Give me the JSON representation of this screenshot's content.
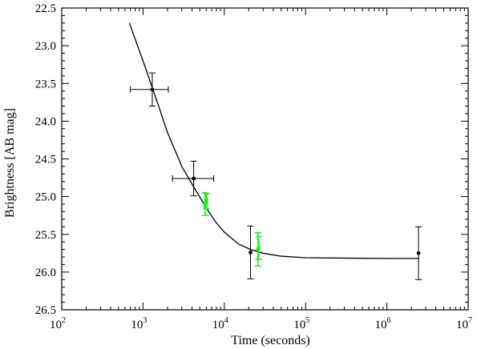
{
  "chart_data": {
    "type": "scatter",
    "title": "",
    "xlabel": "Time (seconds)",
    "ylabel": "Brightness [AB mag]",
    "x_scale": "log",
    "xlim": [
      100,
      10000000
    ],
    "ylim": [
      26.5,
      22.5
    ],
    "y_inverted": true,
    "grid": false,
    "x_ticks": [
      {
        "base": "10",
        "exp": "2",
        "value": 100
      },
      {
        "base": "10",
        "exp": "3",
        "value": 1000
      },
      {
        "base": "10",
        "exp": "4",
        "value": 10000
      },
      {
        "base": "10",
        "exp": "5",
        "value": 100000
      },
      {
        "base": "10",
        "exp": "6",
        "value": 1000000
      },
      {
        "base": "10",
        "exp": "7",
        "value": 10000000
      }
    ],
    "y_ticks": [
      "22.5",
      "23.0",
      "23.5",
      "24.0",
      "24.5",
      "25.0",
      "25.5",
      "26.0",
      "26.5"
    ],
    "series": [
      {
        "color": "#000000",
        "marker": "circle",
        "points": [
          {
            "x": 1300,
            "y": 23.58,
            "xlo": 700,
            "xhi": 2050,
            "yerr": 0.22
          },
          {
            "x": 4200,
            "y": 24.76,
            "xlo": 2300,
            "xhi": 7400,
            "yerr": 0.23
          },
          {
            "x": 21000,
            "y": 25.74,
            "xlo": 21000,
            "xhi": 21000,
            "yerr": 0.35
          },
          {
            "x": 2450000,
            "y": 25.75,
            "xlo": 2450000,
            "xhi": 2450000,
            "yerr": 0.35
          }
        ]
      },
      {
        "color": "#22ee22",
        "marker": "circle",
        "points": [
          {
            "x": 5800,
            "y": 25.1,
            "xlo": 5600,
            "xhi": 6100,
            "yerr": 0.15
          },
          {
            "x": 6000,
            "y": 25.06,
            "xlo": 5800,
            "xhi": 6200,
            "yerr": 0.1
          },
          {
            "x": 26000,
            "y": 25.7,
            "xlo": 26000,
            "xhi": 26000,
            "yerr": 0.22
          },
          {
            "x": 26500,
            "y": 25.68,
            "xlo": 26500,
            "xhi": 26500,
            "yerr": 0.15
          }
        ]
      }
    ],
    "fit_curve": {
      "color": "#000000",
      "points": [
        {
          "x": 680,
          "y": 22.7
        },
        {
          "x": 1000,
          "y": 23.2
        },
        {
          "x": 1500,
          "y": 23.75
        },
        {
          "x": 2000,
          "y": 24.15
        },
        {
          "x": 3000,
          "y": 24.6
        },
        {
          "x": 4200,
          "y": 24.87
        },
        {
          "x": 6000,
          "y": 25.15
        },
        {
          "x": 8000,
          "y": 25.35
        },
        {
          "x": 10000,
          "y": 25.47
        },
        {
          "x": 15000,
          "y": 25.63
        },
        {
          "x": 21000,
          "y": 25.7
        },
        {
          "x": 30000,
          "y": 25.75
        },
        {
          "x": 50000,
          "y": 25.79
        },
        {
          "x": 100000,
          "y": 25.81
        },
        {
          "x": 300000,
          "y": 25.815
        },
        {
          "x": 1000000,
          "y": 25.82
        },
        {
          "x": 2500000,
          "y": 25.82
        }
      ]
    }
  }
}
